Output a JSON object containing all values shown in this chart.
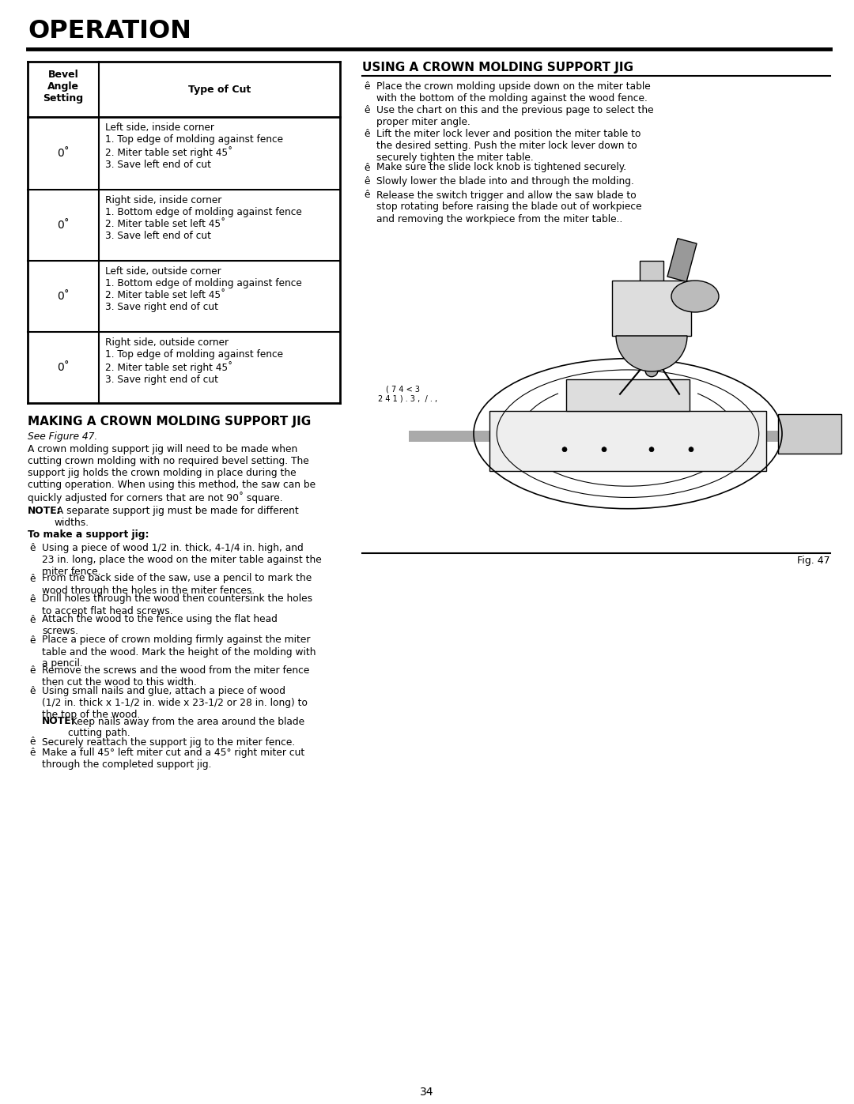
{
  "page_title": "OPERATION",
  "page_number": "34",
  "bg_color": "#ffffff",
  "text_color": "#000000",
  "table": {
    "header_col1": "Bevel\nAngle\nSetting",
    "header_col2": "Type of Cut",
    "rows": [
      {
        "col1": "0˚",
        "col2": "Left side, inside corner\n1. Top edge of molding against fence\n2. Miter table set right 45˚\n3. Save left end of cut"
      },
      {
        "col1": "0˚",
        "col2": "Right side, inside corner\n1. Bottom edge of molding against fence\n2. Miter table set left 45˚\n3. Save left end of cut"
      },
      {
        "col1": "0˚",
        "col2": "Left side, outside corner\n1. Bottom edge of molding against fence\n2. Miter table set left 45˚\n3. Save right end of cut"
      },
      {
        "col1": "0˚",
        "col2": "Right side, outside corner\n1. Top edge of molding against fence\n2. Miter table set right 45˚\n3. Save right end of cut"
      }
    ]
  },
  "section1_title": "MAKING A CROWN MOLDING SUPPORT JIG",
  "section1_subtitle": "See Figure 47.",
  "section1_body": "A crown molding support jig will need to be made when\ncutting crown molding with no required bevel setting. The\nsupport jig holds the crown molding in place during the\ncutting operation. When using this method, the saw can be\nquickly adjusted for corners that are not 90˚ square.",
  "section1_note_bold": "NOTE:",
  "section1_note_rest": " A separate support jig must be made for different\nwidths.",
  "section1_subsection": "To make a support jig:",
  "section1_bullets": [
    [
      "Using a piece of wood 1/2 in. thick, 4-1/4 in. high, and\n23 in. long, place the wood on the miter table against the\nmiter fence.",
      false
    ],
    [
      "From the back side of the saw, use a pencil to mark the\nwood through the holes in the miter fences.",
      false
    ],
    [
      "Drill holes through the wood then countersink the holes\nto accept flat head screws.",
      false
    ],
    [
      "Attach the wood to the fence using the flat head\nscrews.",
      false
    ],
    [
      "Place a piece of crown molding firmly against the miter\ntable and the wood. Mark the height of the molding with\na pencil.",
      false
    ],
    [
      "Remove the screws and the wood from the miter fence\nthen cut the wood to this width.",
      false
    ],
    [
      "Using small nails and glue, attach a piece of wood\n(1/2 in. thick x 1-1/2 in. wide x 23-1/2 or 28 in. long) to\nthe top of the wood.",
      true
    ],
    [
      "Securely reattach the support jig to the miter fence.",
      false
    ],
    [
      "Make a full 45° left miter cut and a 45° right miter cut\nthrough the completed support jig.",
      false
    ]
  ],
  "section1_inner_note_bold": "NOTE:",
  "section1_inner_note_rest": " Keep nails away from the area around the blade\ncutting path.",
  "section2_title": "USING A CROWN MOLDING SUPPORT JIG",
  "section2_bullets": [
    "Place the crown molding upside down on the miter table\nwith the bottom of the molding against the wood fence.",
    "Use the chart on this and the previous page to select the\nproper miter angle.",
    "Lift the miter lock lever and position the miter table to\nthe desired setting. Push the miter lock lever down to\nsecurely tighten the miter table.",
    "Make sure the slide lock knob is tightened securely.",
    "Slowly lower the blade into and through the molding.",
    "Release the switch trigger and allow the saw blade to\nstop rotating before raising the blade out of workpiece\nand removing the workpiece from the miter table.."
  ],
  "fig_caption": "Fig. 47",
  "fig_label_line1": "( 7 4 < 3",
  "fig_label_line2": "2 4 1 ) . 3 ,  / . ,"
}
